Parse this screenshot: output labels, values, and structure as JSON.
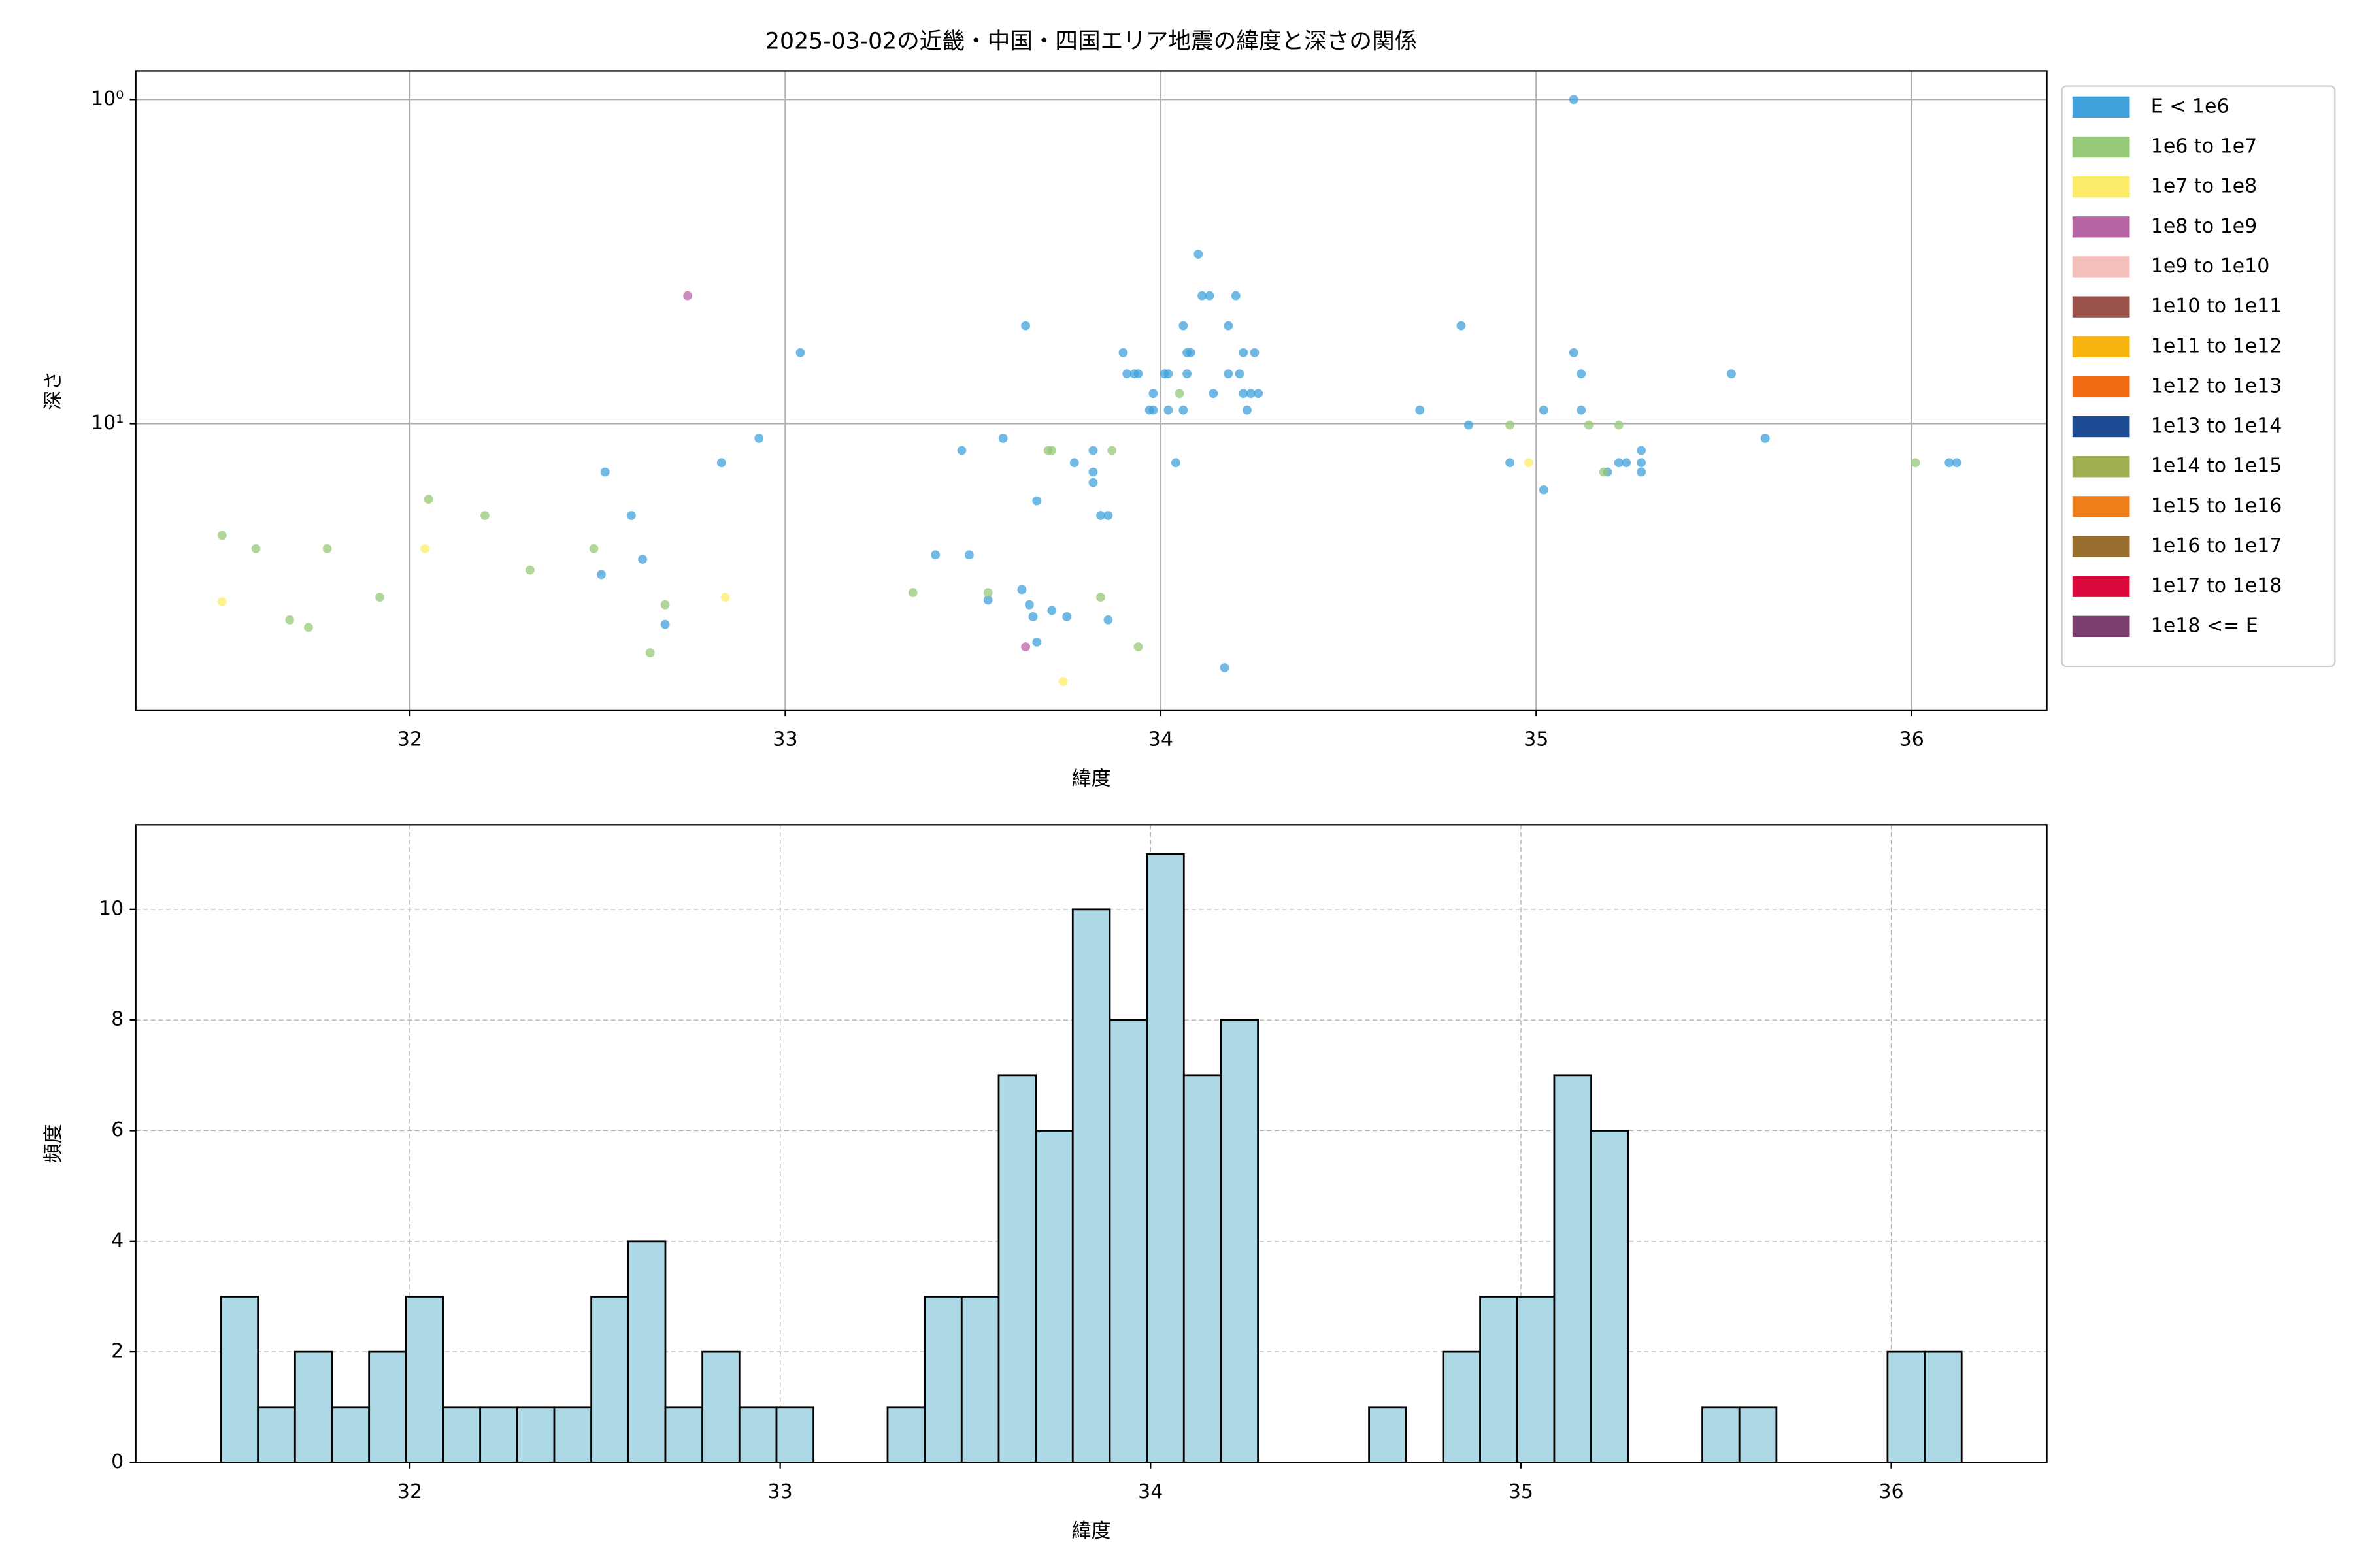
{
  "chart_data": [
    {
      "type": "scatter",
      "title": "2025-03-02の近畿・中国・四国エリア地震の緯度と深さの関係",
      "x_label": "緯度",
      "y_label": "深さ",
      "xlim": [
        31.27,
        36.36
      ],
      "xticks": [
        32,
        33,
        34,
        35,
        36
      ],
      "ylim": [
        0.816,
        76.5
      ],
      "y_log": true,
      "y_inverted": true,
      "yticks": [
        {
          "value": 1,
          "label": "10⁰"
        },
        {
          "value": 10,
          "label": "10¹"
        }
      ],
      "grid": true,
      "grid_linestyle": "solid",
      "legend_loc": "outside upper right",
      "series": [
        {
          "name": "E < 1e6",
          "color": "#41a1dc",
          "x": [
            35.1,
            34.1,
            34.11,
            34.13,
            34.2,
            33.64,
            34.8,
            34.06,
            34.18,
            33.04,
            33.9,
            34.07,
            34.08,
            34.22,
            34.25,
            35.1,
            33.91,
            33.93,
            33.94,
            34.01,
            34.02,
            34.07,
            34.18,
            34.21,
            35.12,
            35.52,
            33.98,
            34.14,
            34.22,
            34.24,
            34.26,
            33.97,
            33.98,
            34.02,
            34.06,
            34.23,
            34.69,
            35.02,
            35.12,
            34.82,
            33.58,
            32.93,
            35.61,
            35.28,
            33.47,
            33.82,
            33.77,
            34.04,
            34.93,
            35.22,
            35.24,
            35.28,
            36.1,
            36.12,
            32.52,
            32.83,
            33.82,
            35.19,
            35.28,
            33.82,
            35.02,
            33.67,
            32.59,
            33.84,
            33.86,
            33.4,
            33.49,
            32.62,
            32.51,
            33.63,
            33.65,
            33.54,
            33.71,
            33.66,
            33.75,
            33.86,
            32.68,
            33.67,
            34.17
          ],
          "values": [
            1.0,
            3.0,
            4.03,
            4.03,
            4.03,
            4.99,
            4.99,
            4.99,
            4.99,
            6.04,
            6.04,
            6.04,
            6.04,
            6.04,
            6.04,
            6.04,
            7.02,
            7.02,
            7.02,
            7.02,
            7.02,
            7.02,
            7.02,
            7.02,
            7.02,
            7.02,
            8.07,
            8.07,
            8.07,
            8.07,
            8.07,
            9.08,
            9.08,
            9.08,
            9.08,
            9.08,
            9.08,
            9.08,
            9.08,
            10.1,
            11.1,
            11.1,
            11.1,
            12.1,
            12.1,
            12.1,
            13.2,
            13.2,
            13.2,
            13.2,
            13.2,
            13.2,
            13.2,
            13.2,
            14.1,
            13.2,
            14.1,
            14.1,
            14.1,
            15.2,
            16.0,
            17.3,
            19.2,
            19.2,
            19.2,
            25.4,
            25.4,
            26.2,
            29.2,
            32.5,
            36.2,
            35.0,
            37.7,
            39.4,
            39.4,
            40.3,
            41.6,
            47.2,
            56.6
          ]
        },
        {
          "name": "1e6 to 1e7",
          "color": "#95c977",
          "x": [
            31.5,
            31.59,
            31.78,
            32.05,
            32.2,
            32.32,
            32.49,
            31.92,
            31.68,
            31.73,
            32.68,
            32.64,
            33.34,
            33.54,
            33.7,
            33.71,
            33.87,
            33.84,
            33.94,
            34.05,
            34.93,
            35.14,
            35.22,
            36.01,
            35.18
          ],
          "values": [
            22.1,
            24.3,
            24.3,
            17.1,
            19.2,
            28.3,
            24.3,
            34.3,
            40.3,
            42.5,
            36.2,
            50.9,
            33.2,
            33.2,
            12.1,
            12.1,
            12.1,
            34.3,
            48.8,
            8.07,
            10.1,
            10.1,
            10.1,
            13.2,
            14.1
          ]
        },
        {
          "name": "1e7 to 1e8",
          "color": "#fdec6a",
          "x": [
            31.5,
            32.04,
            32.84,
            33.74,
            34.98
          ],
          "values": [
            35.4,
            24.3,
            34.3,
            62.4,
            13.2
          ]
        },
        {
          "name": "1e8 to 1e9",
          "color": "#b765a5",
          "x": [
            32.74,
            33.64
          ],
          "values": [
            4.03,
            48.8
          ]
        },
        {
          "name": "1e9 to 1e10",
          "color": "#f5c0bb",
          "x": [],
          "values": []
        },
        {
          "name": "1e10 to 1e11",
          "color": "#9a5149",
          "x": [],
          "values": []
        },
        {
          "name": "1e11 to 1e12",
          "color": "#f8b40f",
          "x": [],
          "values": []
        },
        {
          "name": "1e12 to 1e13",
          "color": "#ef6a10",
          "x": [],
          "values": []
        },
        {
          "name": "1e13 to 1e14",
          "color": "#1c4b93",
          "x": [],
          "values": []
        },
        {
          "name": "1e14 to 1e15",
          "color": "#9eae51",
          "x": [],
          "values": []
        },
        {
          "name": "1e15 to 1e16",
          "color": "#ef7f1a",
          "x": [],
          "values": []
        },
        {
          "name": "1e16 to 1e17",
          "color": "#9a6e2f",
          "x": [],
          "values": []
        },
        {
          "name": "1e17 to 1e18",
          "color": "#dc0a3c",
          "x": [],
          "values": []
        },
        {
          "name": "1e18 <= E",
          "color": "#7a3f6c",
          "x": [],
          "values": []
        }
      ]
    },
    {
      "type": "histogram",
      "x_label": "緯度",
      "y_label": "頻度",
      "xlim": [
        31.26,
        36.42
      ],
      "xticks": [
        32,
        33,
        34,
        35,
        36
      ],
      "ylim": [
        0,
        11.53
      ],
      "yticks": [
        0,
        2,
        4,
        6,
        8,
        10
      ],
      "grid": true,
      "grid_linestyle": "dashed",
      "color": "#add8e6",
      "edgecolor": "#000000",
      "bins": [
        31.49,
        31.59,
        31.69,
        31.79,
        31.89,
        31.99,
        32.09,
        32.19,
        32.29,
        32.39,
        32.49,
        32.59,
        32.69,
        32.79,
        32.89,
        32.99,
        33.09,
        33.19,
        33.29,
        33.39,
        33.49,
        33.59,
        33.69,
        33.79,
        33.89,
        33.99,
        34.09,
        34.19,
        34.29,
        34.39,
        34.49,
        34.59,
        34.69,
        34.79,
        34.89,
        34.99,
        35.09,
        35.19,
        35.29,
        35.39,
        35.49,
        35.59,
        35.69,
        35.79,
        35.89,
        35.99,
        36.09,
        36.19
      ],
      "counts": [
        3,
        1,
        2,
        1,
        2,
        3,
        1,
        1,
        1,
        1,
        3,
        4,
        1,
        2,
        1,
        1,
        0,
        0,
        1,
        3,
        3,
        7,
        6,
        10,
        8,
        11,
        7,
        8,
        0,
        0,
        0,
        1,
        0,
        2,
        3,
        3,
        7,
        6,
        0,
        0,
        1,
        1,
        0,
        0,
        0,
        2,
        2
      ]
    }
  ]
}
